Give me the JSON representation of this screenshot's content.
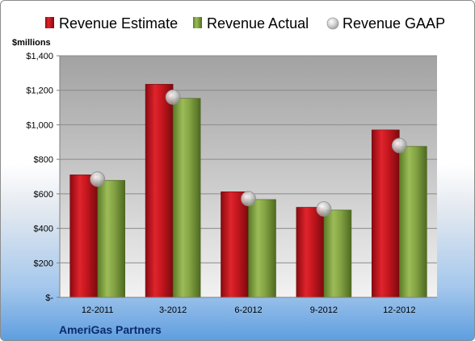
{
  "chart_data": {
    "type": "bar",
    "company": "AmeriGas Partners",
    "unit_label": "$millions",
    "categories": [
      "12-2011",
      "3-2012",
      "6-2012",
      "9-2012",
      "12-2012"
    ],
    "series": [
      {
        "name": "Revenue Estimate",
        "kind": "bar",
        "color": "#c0141c",
        "values": [
          710,
          1235,
          612,
          522,
          970
        ]
      },
      {
        "name": "Revenue Actual",
        "kind": "bar",
        "color": "#7a9a3a",
        "values": [
          678,
          1153,
          567,
          506,
          875
        ]
      },
      {
        "name": "Revenue GAAP",
        "kind": "marker",
        "color": "#b0b0b0",
        "values": [
          685,
          1160,
          572,
          512,
          880
        ]
      }
    ],
    "ylim": [
      0,
      1400
    ],
    "yticks": [
      0,
      200,
      400,
      600,
      800,
      1000,
      1200,
      1400
    ],
    "ytick_labels": [
      "$-",
      "$200",
      "$400",
      "$600",
      "$800",
      "$1,000",
      "$1,200",
      "$1,400"
    ],
    "grid": true,
    "legend_position": "top"
  }
}
